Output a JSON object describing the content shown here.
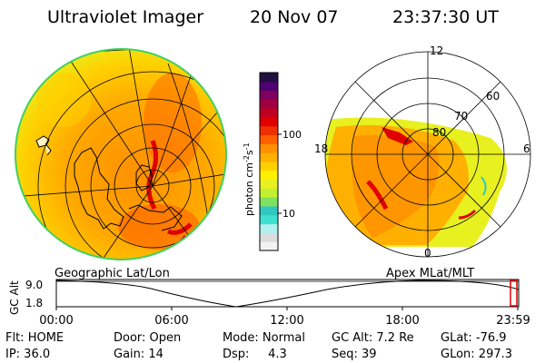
{
  "header": {
    "title": "Ultraviolet Imager",
    "date": "20 Nov 07",
    "time": "23:37:30 UT"
  },
  "left_map": {
    "label": "Geographic Lat/Lon"
  },
  "right_map": {
    "label": "Apex  MLat/MLT",
    "lat_labels": [
      "80",
      "70",
      "60"
    ],
    "mlt_labels": {
      "top": "12",
      "left": "18",
      "right": "6",
      "bottom": "0"
    }
  },
  "colorbar": {
    "label": "photon cm-2s-1",
    "label_main": "photon cm",
    "label_sup1": "-2",
    "label_s": "s",
    "label_sup2": "-1",
    "tick_100": "100",
    "tick_10": "10",
    "colors": [
      "#f2f2f2",
      "#dcdcdc",
      "#b0f0f0",
      "#40e0d0",
      "#30c8c0",
      "#80e060",
      "#c0f030",
      "#e8f020",
      "#fff000",
      "#ffd000",
      "#ffb000",
      "#ff9000",
      "#ff6000",
      "#f03000",
      "#e00000",
      "#c00020",
      "#a00040",
      "#800060",
      "#500070",
      "#201040"
    ]
  },
  "timeline": {
    "axis_label": "GC Alt",
    "y_top": "9.0",
    "y_bottom": "1.8",
    "x_ticks": [
      "00:00",
      "06:00",
      "12:00",
      "18:00",
      "23:59"
    ]
  },
  "info": {
    "filter_label": "Flt: HOME",
    "door_label": "Door: Open",
    "mode_label": "Mode: Normal",
    "gc_alt_label": "GC Alt: 7.2 Re",
    "glat_label": "GLat: -76.9",
    "ip_label": "IP: 36.0",
    "gain_label": "Gain: 14",
    "dsp_label": "Dsp:     4.3",
    "seq_label": "Seq: 39",
    "glon_label": "GLon: 297.3"
  }
}
